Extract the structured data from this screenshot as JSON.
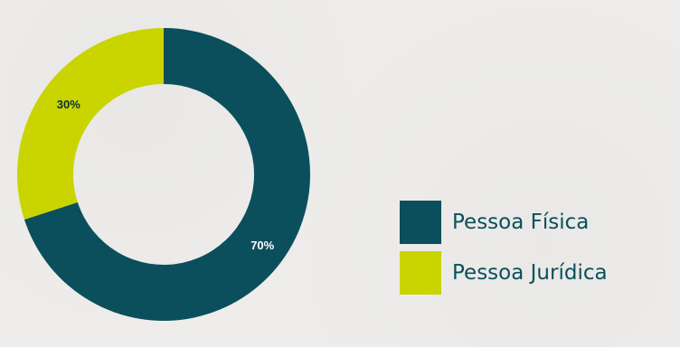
{
  "chart_data": {
    "type": "pie",
    "variant": "donut",
    "categories": [
      "Pessoa Física",
      "Pessoa Jurídica"
    ],
    "values": [
      70,
      30
    ],
    "data_labels": [
      "70%",
      "30%"
    ],
    "colors": [
      "#0b4f5c",
      "#c9d400"
    ],
    "label_colors": [
      "#ffffff",
      "#0b2f35"
    ],
    "legend_position": "bottom-right"
  },
  "legend": {
    "items": [
      {
        "label": "Pessoa Física",
        "color": "#0b4f5c"
      },
      {
        "label": "Pessoa Jurídica",
        "color": "#c9d400"
      }
    ]
  }
}
